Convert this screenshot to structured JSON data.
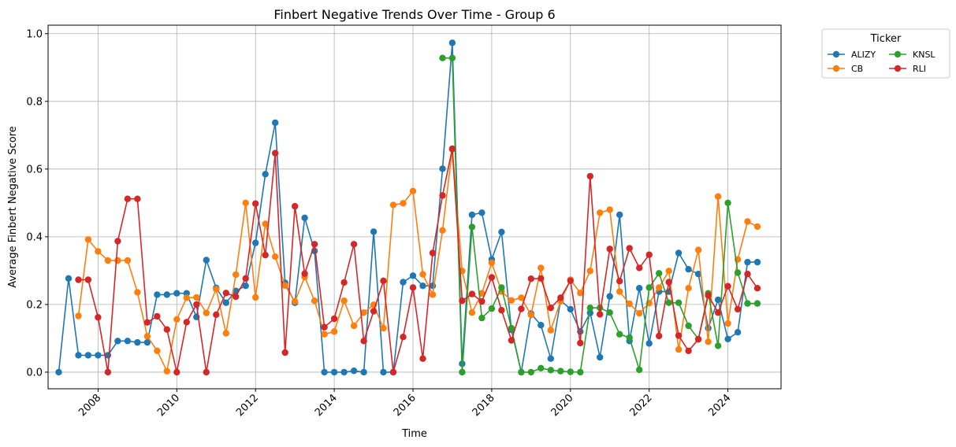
{
  "chart_data": {
    "type": "line",
    "title": "Finbert Negative Trends Over Time - Group 6",
    "xlabel": "Time",
    "ylabel": "Average Finbert Negative Score",
    "xlim": [
      2006.73,
      2025.35
    ],
    "ylim": [
      -0.049,
      1.025
    ],
    "x_ticks": [
      2008,
      2010,
      2012,
      2014,
      2016,
      2018,
      2020,
      2022,
      2024
    ],
    "y_ticks": [
      0.0,
      0.2,
      0.4,
      0.6,
      0.8,
      1.0
    ],
    "grid": true,
    "legend": {
      "title": "Ticker",
      "placement": "outside-top-right",
      "columns": 2
    },
    "series": [
      {
        "name": "ALIZY",
        "color": "#1f77b4",
        "points": [
          [
            2007.0,
            0.0
          ],
          [
            2007.25,
            0.277
          ],
          [
            2007.5,
            0.05
          ],
          [
            2007.75,
            0.05
          ],
          [
            2008.0,
            0.05
          ],
          [
            2008.25,
            0.05
          ],
          [
            2008.5,
            0.092
          ],
          [
            2008.75,
            0.092
          ],
          [
            2009.0,
            0.088
          ],
          [
            2009.25,
            0.088
          ],
          [
            2009.5,
            0.229
          ],
          [
            2009.75,
            0.229
          ],
          [
            2010.0,
            0.233
          ],
          [
            2010.25,
            0.233
          ],
          [
            2010.5,
            0.163
          ],
          [
            2010.75,
            0.331
          ],
          [
            2011.0,
            0.249
          ],
          [
            2011.25,
            0.205
          ],
          [
            2011.5,
            0.24
          ],
          [
            2011.75,
            0.255
          ],
          [
            2012.0,
            0.382
          ],
          [
            2012.25,
            0.585
          ],
          [
            2012.5,
            0.737
          ],
          [
            2012.75,
            0.264
          ],
          [
            2013.0,
            0.205
          ],
          [
            2013.25,
            0.456
          ],
          [
            2013.5,
            0.358
          ],
          [
            2013.75,
            0.0
          ],
          [
            2014.0,
            0.0
          ],
          [
            2014.25,
            0.0
          ],
          [
            2014.5,
            0.004
          ],
          [
            2014.75,
            0.0
          ],
          [
            2015.0,
            0.415
          ],
          [
            2015.25,
            0.0
          ],
          [
            2015.5,
            0.0
          ],
          [
            2015.75,
            0.266
          ],
          [
            2016.0,
            0.285
          ],
          [
            2016.25,
            0.255
          ],
          [
            2016.5,
            0.255
          ],
          [
            2016.75,
            0.601
          ],
          [
            2017.0,
            0.973
          ],
          [
            2017.25,
            0.025
          ],
          [
            2017.5,
            0.465
          ],
          [
            2017.75,
            0.471
          ],
          [
            2018.0,
            0.333
          ],
          [
            2018.25,
            0.414
          ],
          [
            2018.5,
            0.125
          ],
          [
            2018.75,
            0.0
          ],
          [
            2019.0,
            0.173
          ],
          [
            2019.25,
            0.139
          ],
          [
            2019.5,
            0.04
          ],
          [
            2019.75,
            0.212
          ],
          [
            2020.0,
            0.186
          ],
          [
            2020.25,
            0.12
          ],
          [
            2020.5,
            0.175
          ],
          [
            2020.75,
            0.044
          ],
          [
            2021.0,
            0.224
          ],
          [
            2021.25,
            0.465
          ],
          [
            2021.5,
            0.092
          ],
          [
            2021.75,
            0.248
          ],
          [
            2022.0,
            0.085
          ],
          [
            2022.25,
            0.238
          ],
          [
            2022.5,
            0.238
          ],
          [
            2022.75,
            0.352
          ],
          [
            2023.0,
            0.304
          ],
          [
            2023.25,
            0.29
          ],
          [
            2023.5,
            0.13
          ],
          [
            2023.75,
            0.214
          ],
          [
            2024.0,
            0.098
          ],
          [
            2024.25,
            0.118
          ],
          [
            2024.5,
            0.325
          ],
          [
            2024.75,
            0.325
          ]
        ]
      },
      {
        "name": "CB",
        "color": "#ff7f0e",
        "points": [
          [
            2007.5,
            0.166
          ],
          [
            2007.75,
            0.392
          ],
          [
            2008.0,
            0.357
          ],
          [
            2008.25,
            0.33
          ],
          [
            2008.5,
            0.33
          ],
          [
            2008.75,
            0.33
          ],
          [
            2009.0,
            0.236
          ],
          [
            2009.25,
            0.106
          ],
          [
            2009.5,
            0.063
          ],
          [
            2009.75,
            0.003
          ],
          [
            2010.0,
            0.156
          ],
          [
            2010.25,
            0.22
          ],
          [
            2010.5,
            0.221
          ],
          [
            2010.75,
            0.175
          ],
          [
            2011.0,
            0.245
          ],
          [
            2011.25,
            0.115
          ],
          [
            2011.5,
            0.288
          ],
          [
            2011.75,
            0.5
          ],
          [
            2012.0,
            0.221
          ],
          [
            2012.25,
            0.438
          ],
          [
            2012.5,
            0.341
          ],
          [
            2012.75,
            0.256
          ],
          [
            2013.0,
            0.209
          ],
          [
            2013.25,
            0.281
          ],
          [
            2013.5,
            0.211
          ],
          [
            2013.75,
            0.112
          ],
          [
            2014.0,
            0.12
          ],
          [
            2014.25,
            0.211
          ],
          [
            2014.5,
            0.137
          ],
          [
            2014.75,
            0.176
          ],
          [
            2015.0,
            0.199
          ],
          [
            2015.25,
            0.13
          ],
          [
            2015.5,
            0.494
          ],
          [
            2015.75,
            0.499
          ],
          [
            2016.0,
            0.535
          ],
          [
            2016.25,
            0.289
          ],
          [
            2016.5,
            0.229
          ],
          [
            2016.75,
            0.419
          ],
          [
            2017.0,
            0.658
          ],
          [
            2017.25,
            0.299
          ],
          [
            2017.5,
            0.176
          ],
          [
            2017.75,
            0.233
          ],
          [
            2018.0,
            0.323
          ],
          [
            2018.25,
            0.238
          ],
          [
            2018.5,
            0.212
          ],
          [
            2018.75,
            0.22
          ],
          [
            2019.0,
            0.169
          ],
          [
            2019.25,
            0.308
          ],
          [
            2019.5,
            0.124
          ],
          [
            2019.75,
            0.21
          ],
          [
            2020.0,
            0.273
          ],
          [
            2020.25,
            0.234
          ],
          [
            2020.5,
            0.299
          ],
          [
            2020.75,
            0.471
          ],
          [
            2021.0,
            0.48
          ],
          [
            2021.25,
            0.238
          ],
          [
            2021.5,
            0.202
          ],
          [
            2021.75,
            0.174
          ],
          [
            2022.0,
            0.204
          ],
          [
            2022.25,
            0.25
          ],
          [
            2022.5,
            0.299
          ],
          [
            2022.75,
            0.067
          ],
          [
            2023.0,
            0.248
          ],
          [
            2023.25,
            0.361
          ],
          [
            2023.5,
            0.09
          ],
          [
            2023.75,
            0.519
          ],
          [
            2024.0,
            0.144
          ],
          [
            2024.25,
            0.333
          ],
          [
            2024.5,
            0.445
          ],
          [
            2024.75,
            0.43
          ]
        ]
      },
      {
        "name": "KNSL",
        "color": "#2ca02c",
        "points": [
          [
            2016.75,
            0.928
          ],
          [
            2017.0,
            0.928
          ],
          [
            2017.25,
            0.0
          ],
          [
            2017.5,
            0.429
          ],
          [
            2017.75,
            0.16
          ],
          [
            2018.0,
            0.188
          ],
          [
            2018.25,
            0.25
          ],
          [
            2018.5,
            0.13
          ],
          [
            2018.75,
            0.0
          ],
          [
            2019.0,
            0.0
          ],
          [
            2019.25,
            0.012
          ],
          [
            2019.5,
            0.006
          ],
          [
            2019.75,
            0.003
          ],
          [
            2020.0,
            0.001
          ],
          [
            2020.25,
            0.0
          ],
          [
            2020.5,
            0.19
          ],
          [
            2020.75,
            0.19
          ],
          [
            2021.0,
            0.176
          ],
          [
            2021.25,
            0.112
          ],
          [
            2021.5,
            0.102
          ],
          [
            2021.75,
            0.007
          ],
          [
            2022.0,
            0.25
          ],
          [
            2022.25,
            0.292
          ],
          [
            2022.5,
            0.205
          ],
          [
            2022.75,
            0.205
          ],
          [
            2023.0,
            0.137
          ],
          [
            2023.25,
            0.098
          ],
          [
            2023.5,
            0.233
          ],
          [
            2023.75,
            0.078
          ],
          [
            2024.0,
            0.5
          ],
          [
            2024.25,
            0.294
          ],
          [
            2024.5,
            0.203
          ],
          [
            2024.75,
            0.203
          ]
        ]
      },
      {
        "name": "RLI",
        "color": "#d62728",
        "points": [
          [
            2007.5,
            0.273
          ],
          [
            2007.75,
            0.273
          ],
          [
            2008.0,
            0.162
          ],
          [
            2008.25,
            0.0
          ],
          [
            2008.5,
            0.387
          ],
          [
            2008.75,
            0.512
          ],
          [
            2009.0,
            0.512
          ],
          [
            2009.25,
            0.147
          ],
          [
            2009.5,
            0.165
          ],
          [
            2009.75,
            0.126
          ],
          [
            2010.0,
            0.0
          ],
          [
            2010.25,
            0.148
          ],
          [
            2010.5,
            0.2
          ],
          [
            2010.75,
            0.0
          ],
          [
            2011.0,
            0.17
          ],
          [
            2011.25,
            0.234
          ],
          [
            2011.5,
            0.223
          ],
          [
            2011.75,
            0.277
          ],
          [
            2012.0,
            0.498
          ],
          [
            2012.25,
            0.346
          ],
          [
            2012.5,
            0.647
          ],
          [
            2012.75,
            0.058
          ],
          [
            2013.0,
            0.49
          ],
          [
            2013.25,
            0.291
          ],
          [
            2013.5,
            0.378
          ],
          [
            2013.75,
            0.133
          ],
          [
            2014.0,
            0.158
          ],
          [
            2014.25,
            0.265
          ],
          [
            2014.5,
            0.378
          ],
          [
            2014.75,
            0.092
          ],
          [
            2015.0,
            0.18
          ],
          [
            2015.25,
            0.27
          ],
          [
            2015.5,
            0.0
          ],
          [
            2015.75,
            0.104
          ],
          [
            2016.0,
            0.25
          ],
          [
            2016.25,
            0.04
          ],
          [
            2016.5,
            0.352
          ],
          [
            2016.75,
            0.522
          ],
          [
            2017.0,
            0.66
          ],
          [
            2017.25,
            0.211
          ],
          [
            2017.5,
            0.231
          ],
          [
            2017.75,
            0.209
          ],
          [
            2018.0,
            0.28
          ],
          [
            2018.25,
            0.183
          ],
          [
            2018.5,
            0.094
          ],
          [
            2018.75,
            0.187
          ],
          [
            2019.0,
            0.276
          ],
          [
            2019.25,
            0.277
          ],
          [
            2019.5,
            0.19
          ],
          [
            2019.75,
            0.22
          ],
          [
            2020.0,
            0.27
          ],
          [
            2020.25,
            0.086
          ],
          [
            2020.5,
            0.579
          ],
          [
            2020.75,
            0.171
          ],
          [
            2021.0,
            0.364
          ],
          [
            2021.25,
            0.269
          ],
          [
            2021.5,
            0.366
          ],
          [
            2021.75,
            0.308
          ],
          [
            2022.0,
            0.347
          ],
          [
            2022.25,
            0.107
          ],
          [
            2022.5,
            0.266
          ],
          [
            2022.75,
            0.108
          ],
          [
            2023.0,
            0.063
          ],
          [
            2023.25,
            0.097
          ],
          [
            2023.5,
            0.227
          ],
          [
            2023.75,
            0.176
          ],
          [
            2024.0,
            0.254
          ],
          [
            2024.25,
            0.186
          ],
          [
            2024.5,
            0.29
          ],
          [
            2024.75,
            0.248
          ]
        ]
      }
    ]
  }
}
